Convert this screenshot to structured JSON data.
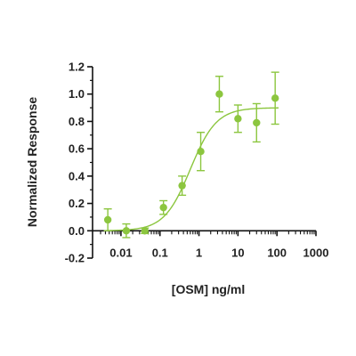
{
  "chart_data": {
    "type": "scatter",
    "xlabel": "[OSM] ng/ml",
    "ylabel": "Normalized Response",
    "x_scale": "log",
    "xlim": [
      0.003,
      1000
    ],
    "ylim": [
      -0.2,
      1.2
    ],
    "x_ticks": [
      0.01,
      0.1,
      1,
      10,
      100,
      1000
    ],
    "x_tick_labels": [
      "0.01",
      "0.1",
      "1",
      "10",
      "100",
      "1000"
    ],
    "y_ticks": [
      -0.2,
      0.0,
      0.2,
      0.4,
      0.6,
      0.8,
      1.0,
      1.2
    ],
    "y_tick_labels": [
      "-0.2",
      "0.0",
      "0.2",
      "0.4",
      "0.6",
      "0.8",
      "1.0",
      "1.2"
    ],
    "grid": false,
    "legend": "none",
    "color": "#8cc63f",
    "series": [
      {
        "points": [
          {
            "x": 0.0046,
            "y": 0.08,
            "err": 0.08
          },
          {
            "x": 0.0137,
            "y": 0.0,
            "err": 0.05
          },
          {
            "x": 0.041,
            "y": 0.0,
            "err": 0.02
          },
          {
            "x": 0.123,
            "y": 0.17,
            "err": 0.05
          },
          {
            "x": 0.37,
            "y": 0.33,
            "err": 0.07
          },
          {
            "x": 1.11,
            "y": 0.58,
            "err": 0.14
          },
          {
            "x": 3.33,
            "y": 1.0,
            "err": 0.13
          },
          {
            "x": 10,
            "y": 0.82,
            "err": 0.1
          },
          {
            "x": 30,
            "y": 0.79,
            "err": 0.14
          },
          {
            "x": 90,
            "y": 0.97,
            "err": 0.19
          }
        ],
        "fit": {
          "model": "4PL",
          "bottom": 0.0,
          "top": 0.9,
          "ec50": 0.6,
          "hill": 1.3
        }
      }
    ]
  }
}
